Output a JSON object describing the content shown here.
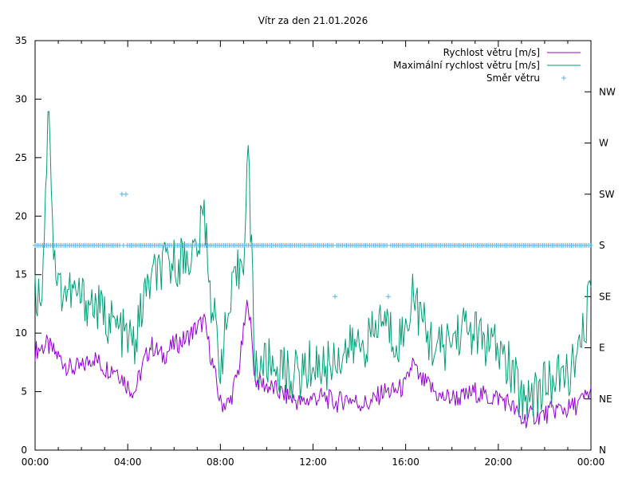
{
  "chart_data": {
    "type": "line",
    "title": "Vítr za den 21.01.2026",
    "xlabel": "",
    "ylabel": "",
    "x_unit": "hours",
    "xlim": [
      0,
      24
    ],
    "ylim": [
      0,
      35
    ],
    "grid": false,
    "legend_position": "top-right",
    "x_ticks": [
      {
        "value": 0,
        "label": "00:00"
      },
      {
        "value": 4,
        "label": "04:00"
      },
      {
        "value": 8,
        "label": "08:00"
      },
      {
        "value": 12,
        "label": "12:00"
      },
      {
        "value": 16,
        "label": "16:00"
      },
      {
        "value": 20,
        "label": "20:00"
      },
      {
        "value": 24,
        "label": "00:00"
      }
    ],
    "y_ticks": [
      {
        "value": 0,
        "label": "0"
      },
      {
        "value": 5,
        "label": "5"
      },
      {
        "value": 10,
        "label": "10"
      },
      {
        "value": 15,
        "label": "15"
      },
      {
        "value": 20,
        "label": "20"
      },
      {
        "value": 25,
        "label": "25"
      },
      {
        "value": 30,
        "label": "30"
      },
      {
        "value": 35,
        "label": "35"
      }
    ],
    "y2_ticks": [
      {
        "value": 0,
        "label": "N"
      },
      {
        "value": 45,
        "label": "NE"
      },
      {
        "value": 90,
        "label": "E"
      },
      {
        "value": 135,
        "label": "SE"
      },
      {
        "value": 180,
        "label": "S"
      },
      {
        "value": 225,
        "label": "SW"
      },
      {
        "value": 270,
        "label": "W"
      },
      {
        "value": 315,
        "label": "NW"
      }
    ],
    "y2lim": [
      0,
      360
    ],
    "series": [
      {
        "name": "Rychlost větru [m/s]",
        "color": "#9400d3",
        "kind": "line",
        "x": [
          0,
          0.5,
          1,
          1.5,
          2,
          2.5,
          3,
          3.5,
          4,
          4.3,
          4.7,
          5,
          5.5,
          6,
          6.5,
          7,
          7.3,
          7.6,
          8,
          8.4,
          8.8,
          9.2,
          9.5,
          10,
          10.5,
          11,
          11.5,
          12,
          12.5,
          13,
          13.5,
          14,
          14.5,
          15,
          15.5,
          16,
          16.3,
          16.6,
          17,
          17.5,
          18,
          18.5,
          19,
          19.5,
          20,
          20.5,
          21,
          21.5,
          22,
          22.5,
          23,
          23.5,
          24
        ],
        "y": [
          8.5,
          9.0,
          8.0,
          7.0,
          7.0,
          8.0,
          7.0,
          7.0,
          5.5,
          5.0,
          7.5,
          9.0,
          8.0,
          9.0,
          9.5,
          10.5,
          11.0,
          8.0,
          4.0,
          4.0,
          7.0,
          13.0,
          6.0,
          5.5,
          5.0,
          4.5,
          4.0,
          4.5,
          4.5,
          4.0,
          4.5,
          4.0,
          4.0,
          5.0,
          5.0,
          5.5,
          7.5,
          6.0,
          5.5,
          4.5,
          4.5,
          4.5,
          5.0,
          4.5,
          4.5,
          4.0,
          2.5,
          3.0,
          3.0,
          3.5,
          3.5,
          4.0,
          5.0
        ]
      },
      {
        "name": "Maximální rychlost větru [m/s]",
        "color": "#009e73",
        "kind": "line",
        "x": [
          0,
          0.3,
          0.6,
          0.8,
          1,
          1.5,
          2,
          2.5,
          3,
          3.5,
          4,
          4.3,
          4.7,
          5,
          5.5,
          6,
          6.5,
          7,
          7.3,
          7.6,
          8,
          8.5,
          9.0,
          9.2,
          9.5,
          10,
          10.5,
          11,
          11.5,
          12,
          12.5,
          13,
          13.5,
          14,
          14.5,
          15,
          15.5,
          16,
          16.3,
          16.6,
          17,
          17.5,
          18,
          18.5,
          19,
          19.5,
          20,
          20.5,
          21,
          21.5,
          22,
          22.5,
          23,
          23.5,
          24
        ],
        "y": [
          13.0,
          14.0,
          30.3,
          17.0,
          14.0,
          13.5,
          13.0,
          12.5,
          11.5,
          10.5,
          9.5,
          9.0,
          13.0,
          14.5,
          15.5,
          16.0,
          16.5,
          17.0,
          20.5,
          13.0,
          7.5,
          13.0,
          17.0,
          25.8,
          7.0,
          7.5,
          7.0,
          6.5,
          6.5,
          7.5,
          7.0,
          8.0,
          8.5,
          9.0,
          9.5,
          11.5,
          9.5,
          10.0,
          14.0,
          11.5,
          9.5,
          8.5,
          9.5,
          10.5,
          10.0,
          9.0,
          8.5,
          7.0,
          4.5,
          5.0,
          5.5,
          6.0,
          6.5,
          8.0,
          13.5
        ]
      },
      {
        "name": "Směr větru",
        "color": "#56b4e9",
        "kind": "points",
        "axis": "y2",
        "baseline_direction_deg": 180,
        "baseline_interval_hours": 0.083,
        "outliers": [
          {
            "x": 3.75,
            "y": 225
          },
          {
            "x": 3.92,
            "y": 225
          },
          {
            "x": 12.95,
            "y": 135
          },
          {
            "x": 15.25,
            "y": 135
          }
        ]
      }
    ]
  }
}
